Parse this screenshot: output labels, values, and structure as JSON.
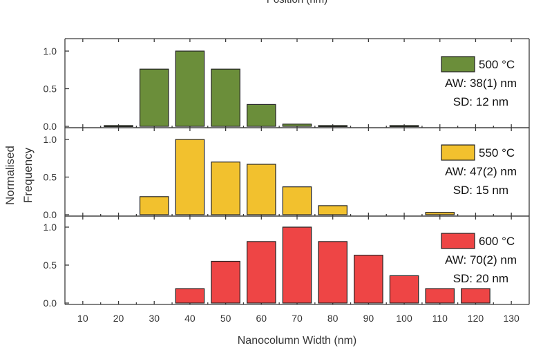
{
  "header_fragment": "Position (nm)",
  "chart_data": {
    "type": "bar",
    "xlabel": "Nanocolumn Width (nm)",
    "ylabel": "Normalised\nFrequency",
    "ylabel_lines": [
      "Normalised",
      "Frequency"
    ],
    "xlim": [
      5,
      135
    ],
    "ylim": [
      0,
      1.0
    ],
    "x_ticks": [
      10,
      20,
      30,
      40,
      50,
      60,
      70,
      80,
      90,
      100,
      110,
      120,
      130
    ],
    "y_ticks": [
      "0.0",
      "0.5",
      "1.0"
    ],
    "bin_width": 8,
    "panels": [
      {
        "name": "500 °C",
        "legend_lines": [
          "500 °C",
          "AW: 38(1) nm",
          "SD: 12 nm"
        ],
        "color": "#6b8e3a",
        "x": [
          20,
          30,
          40,
          50,
          60,
          70,
          80,
          100
        ],
        "values": [
          0.01,
          0.76,
          1.0,
          0.76,
          0.29,
          0.03,
          0.01,
          0.01
        ]
      },
      {
        "name": "550 °C",
        "legend_lines": [
          "550 °C",
          "AW: 47(2) nm",
          "SD: 15 nm"
        ],
        "color": "#f2c12e",
        "x": [
          30,
          40,
          50,
          60,
          70,
          80,
          110
        ],
        "values": [
          0.24,
          1.0,
          0.7,
          0.67,
          0.37,
          0.12,
          0.03
        ]
      },
      {
        "name": "600 °C",
        "legend_lines": [
          "600 °C",
          "AW: 70(2) nm",
          "SD: 20 nm"
        ],
        "color": "#ee4545",
        "x": [
          40,
          50,
          60,
          70,
          80,
          90,
          100,
          110,
          120
        ],
        "values": [
          0.19,
          0.55,
          0.81,
          1.0,
          0.81,
          0.63,
          0.36,
          0.19,
          0.19
        ]
      }
    ]
  }
}
